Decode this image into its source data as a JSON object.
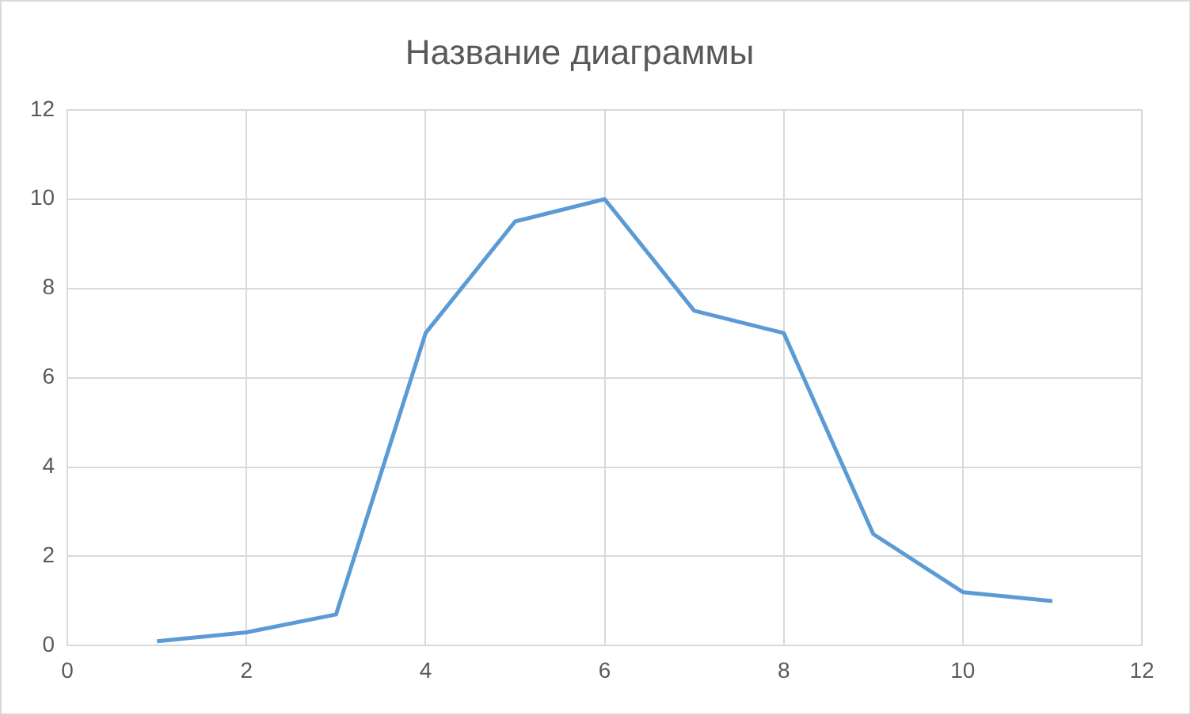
{
  "chart_data": {
    "type": "line",
    "title": "Название диаграммы",
    "x": [
      1,
      2,
      3,
      4,
      5,
      6,
      7,
      8,
      9,
      10,
      11
    ],
    "series": [
      {
        "color": "#5b9bd5",
        "values": [
          0.1,
          0.3,
          0.7,
          7,
          9.5,
          10,
          7.5,
          7,
          2.5,
          1.2,
          1.0
        ]
      }
    ],
    "xlim": [
      0,
      12
    ],
    "xticks": [
      0,
      2,
      4,
      6,
      8,
      10,
      12
    ],
    "ylim": [
      0,
      12
    ],
    "yticks": [
      0,
      2,
      4,
      6,
      8,
      10,
      12
    ],
    "grid": true,
    "marker": "none",
    "line_style": "solid"
  }
}
